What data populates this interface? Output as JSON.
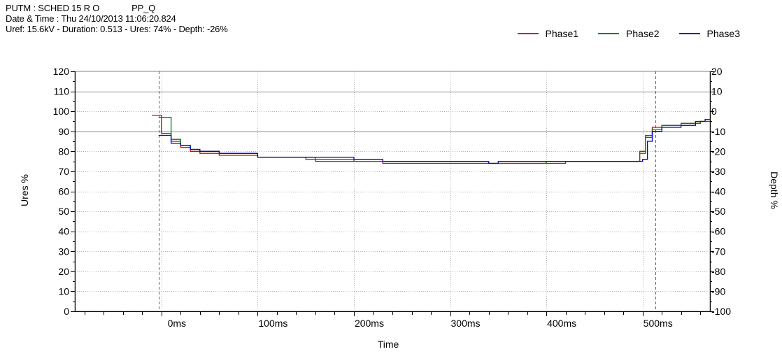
{
  "header": {
    "line1_left": "PUTM : SCHED 15 R O",
    "line1_right": "PP_Q",
    "line2": "Date & Time : Thu 24/10/2013 11:06:20.824",
    "line3": "Uref: 15.6kV - Duration: 0.513 - Ures: 74% - Depth: -26%"
  },
  "legend": [
    {
      "label": "Phase1",
      "color": "#e00000"
    },
    {
      "label": "Phase2",
      "color": "#008000"
    },
    {
      "label": "Phase3",
      "color": "#0000e0"
    }
  ],
  "chart_data": {
    "type": "line",
    "title": "",
    "xlabel": "Time",
    "ylabel": "Ures %",
    "y2label": "Depth %",
    "xlim": [
      -90,
      570
    ],
    "ylim": [
      0,
      120
    ],
    "y2lim": [
      -100,
      20
    ],
    "x_ticks": [
      0,
      100,
      200,
      300,
      400,
      500
    ],
    "x_tick_labels": [
      "0ms",
      "100ms",
      "200ms",
      "300ms",
      "400ms",
      "500ms"
    ],
    "y_ticks": [
      0,
      10,
      20,
      30,
      40,
      50,
      60,
      70,
      80,
      90,
      100,
      110,
      120
    ],
    "y_tick_labels": [
      "0",
      "10",
      "20",
      "30",
      "40",
      "50",
      "60",
      "70",
      "80",
      "90",
      "100",
      "110",
      "120"
    ],
    "y2_ticks": [
      -100,
      -90,
      -80,
      -70,
      -60,
      -50,
      -40,
      -30,
      -20,
      -10,
      0,
      10,
      20
    ],
    "y2_tick_labels": [
      "-100",
      "-90",
      "-80",
      "-70",
      "-60",
      "-50",
      "-40",
      "-30",
      "-20",
      "-10",
      "0",
      "10",
      "20"
    ],
    "reference_lines": [
      90,
      110
    ],
    "event_markers": [
      -3,
      513
    ],
    "grid": true,
    "step": true,
    "series": [
      {
        "name": "Phase1",
        "color": "#e00000",
        "x": [
          -10,
          -3,
          0,
          10,
          20,
          30,
          40,
          60,
          100,
          160,
          230,
          300,
          340,
          360,
          400,
          420,
          470,
          497,
          503,
          510,
          520,
          540,
          560,
          570
        ],
        "y": [
          98,
          98,
          89,
          85,
          82,
          80,
          79,
          78,
          77,
          75,
          74,
          74,
          74,
          74,
          74,
          75,
          75,
          80,
          88,
          92,
          93,
          94,
          95,
          95
        ]
      },
      {
        "name": "Phase2",
        "color": "#008000",
        "x": [
          -3,
          10,
          20,
          30,
          40,
          60,
          100,
          150,
          200,
          300,
          340,
          360,
          400,
          470,
          497,
          503,
          510,
          520,
          540,
          560,
          570
        ],
        "y": [
          97,
          86,
          83,
          81,
          80,
          79,
          77,
          76,
          75,
          75,
          74,
          74,
          75,
          75,
          79,
          87,
          91,
          93,
          94,
          95,
          95
        ]
      },
      {
        "name": "Phase3",
        "color": "#0000e0",
        "x": [
          -3,
          10,
          20,
          30,
          40,
          60,
          100,
          150,
          200,
          230,
          300,
          340,
          350,
          400,
          470,
          500,
          505,
          510,
          520,
          540,
          555,
          565,
          570
        ],
        "y": [
          88,
          84,
          83,
          81,
          80,
          79,
          77,
          77,
          76,
          75,
          75,
          74,
          75,
          75,
          75,
          76,
          85,
          90,
          92,
          93,
          95,
          96,
          96
        ]
      }
    ]
  }
}
